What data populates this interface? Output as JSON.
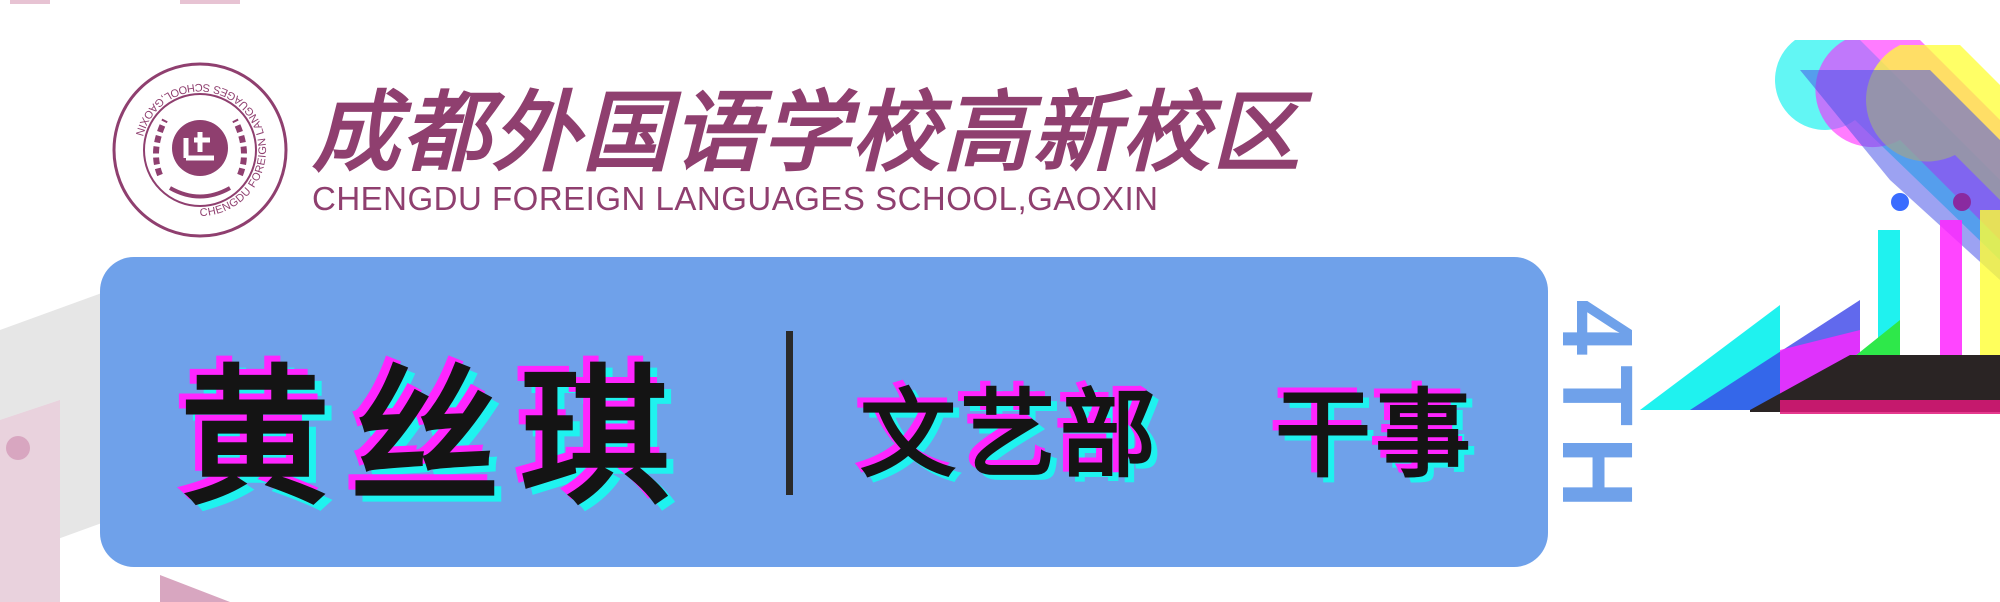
{
  "school": {
    "name_cn": "成都外国语学校高新校区",
    "name_en": "CHENGDU FOREIGN LANGUAGES SCHOOL,GAOXIN",
    "seal_ring_text": "CHENGDU FOREIGN LANGUAGES SCHOOL,GAOXIN"
  },
  "card": {
    "person_name": "黄丝琪",
    "department": "文艺部",
    "role": "干事"
  },
  "edition": "4TH",
  "colors": {
    "brand": "#8f3f6f",
    "card": "#6fa1ea",
    "glitch_magenta": "#ff25ff",
    "glitch_cyan": "#1ff2ef",
    "text_dark": "#141414"
  }
}
